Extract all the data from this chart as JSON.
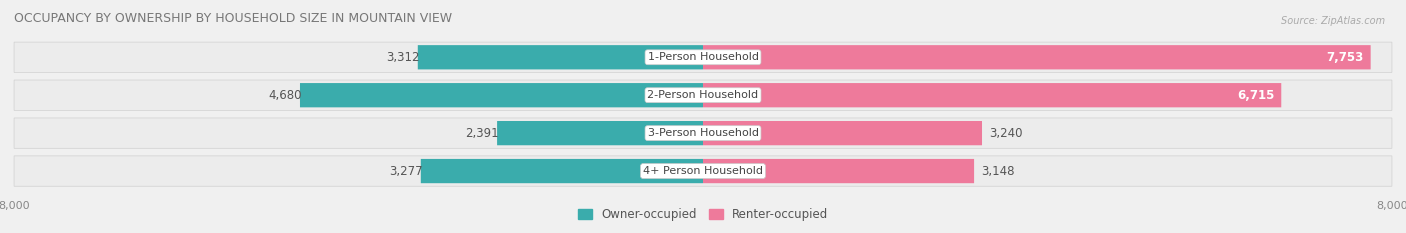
{
  "title": "OCCUPANCY BY OWNERSHIP BY HOUSEHOLD SIZE IN MOUNTAIN VIEW",
  "source": "Source: ZipAtlas.com",
  "categories": [
    "1-Person Household",
    "2-Person Household",
    "3-Person Household",
    "4+ Person Household"
  ],
  "owner_values": [
    3312,
    4680,
    2391,
    3277
  ],
  "renter_values": [
    7753,
    6715,
    3240,
    3148
  ],
  "owner_color_light": "#7DD4D4",
  "owner_color_dark": "#3AACAC",
  "renter_color_light": "#F5AABF",
  "renter_color_dark": "#EE7A9B",
  "axis_max": 8000,
  "bar_height": 0.72,
  "background_color": "#f0f0f0",
  "row_bg_color": "#e8e8e8",
  "row_bg_color2": "#f8f8f8",
  "title_fontsize": 9,
  "value_fontsize": 8.5,
  "cat_fontsize": 8,
  "tick_fontsize": 8,
  "legend_fontsize": 8.5
}
